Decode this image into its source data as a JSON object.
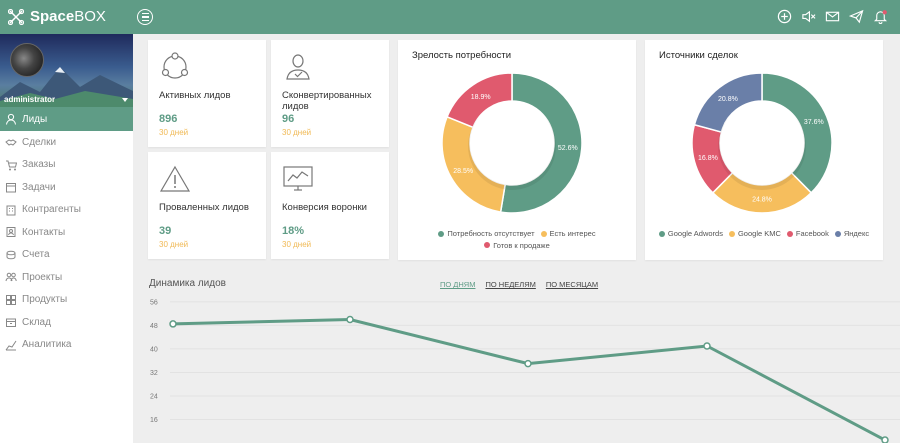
{
  "app": {
    "logo_bold": "Space",
    "logo_light": "BOX"
  },
  "user": {
    "name": "administrator"
  },
  "topbar": {
    "icons": [
      "plus-circle-icon",
      "mute-icon",
      "mail-icon",
      "send-icon",
      "bell-icon"
    ]
  },
  "sidebar": {
    "items": [
      {
        "label": "Лиды",
        "icon": "user-icon",
        "active": true
      },
      {
        "label": "Сделки",
        "icon": "handshake-icon"
      },
      {
        "label": "Заказы",
        "icon": "cart-icon"
      },
      {
        "label": "Задачи",
        "icon": "calendar-icon"
      },
      {
        "label": "Контрагенты",
        "icon": "building-icon"
      },
      {
        "label": "Контакты",
        "icon": "contacts-icon"
      },
      {
        "label": "Счета",
        "icon": "coins-icon"
      },
      {
        "label": "Проекты",
        "icon": "people-icon"
      },
      {
        "label": "Продукты",
        "icon": "grid-icon"
      },
      {
        "label": "Склад",
        "icon": "box-icon"
      },
      {
        "label": "Аналитика",
        "icon": "analytics-icon"
      }
    ]
  },
  "kpis": [
    {
      "label": "Активных лидов",
      "value": "896",
      "period": "30 дней",
      "icon": "cycle-icon"
    },
    {
      "label": "Сконвертированных лидов",
      "value": "96",
      "period": "30 дней",
      "icon": "user-check-icon"
    },
    {
      "label": "Проваленных лидов",
      "value": "39",
      "period": "30 дней",
      "icon": "warning-icon"
    },
    {
      "label": "Конверсия воронки",
      "value": "18%",
      "period": "30 дней",
      "icon": "monitor-chart-icon"
    }
  ],
  "colors": {
    "accent": "#5f9c86",
    "orange": "#f6be5d",
    "red": "#e05a6e",
    "blue": "#6a7fa8"
  },
  "chart_data": [
    {
      "type": "pie",
      "title": "Зрелость потребности",
      "labels": [
        "Потребность отсутствует",
        "Есть интерес",
        "Готов к продаже"
      ],
      "values": [
        52.6,
        28.5,
        18.9
      ],
      "value_labels": [
        "52.6%",
        "28.5%",
        "18.9%"
      ],
      "colors": [
        "#5f9c86",
        "#f6be5d",
        "#e05a6e"
      ],
      "legend": "bottom"
    },
    {
      "type": "pie",
      "title": "Источники сделок",
      "labels": [
        "Google Adwords",
        "Google KMC",
        "Facebook",
        "Яндекс"
      ],
      "values": [
        37.6,
        24.8,
        16.8,
        20.8
      ],
      "value_labels": [
        "37.6%",
        "24.8%",
        "16.8%",
        "20.8%"
      ],
      "colors": [
        "#5f9c86",
        "#f6be5d",
        "#e05a6e",
        "#6a7fa8"
      ],
      "legend": "bottom"
    },
    {
      "type": "line",
      "title": "Динамика лидов",
      "tabs": [
        "ПО ДНЯМ",
        "ПО НЕДЕЛЯМ",
        "ПО МЕСЯЦАМ"
      ],
      "active_tab": 0,
      "y_ticks": [
        "56",
        "48",
        "40",
        "32",
        "24",
        "16"
      ],
      "ylim": [
        8,
        58
      ],
      "values": [
        48.5,
        50,
        35,
        41,
        9
      ],
      "color": "#5f9c86",
      "grid": true
    }
  ]
}
